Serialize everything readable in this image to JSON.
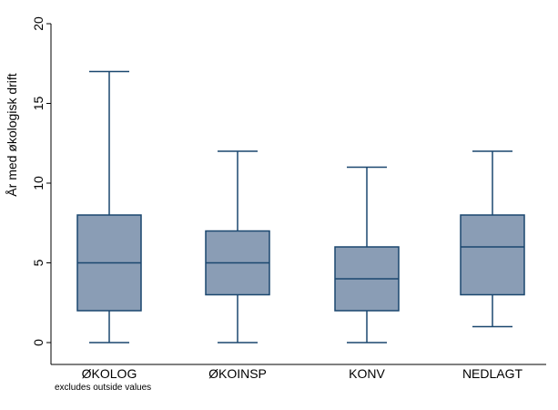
{
  "chart_data": {
    "type": "box",
    "ylabel": "År med økologisk drift",
    "ylim": [
      0,
      20
    ],
    "yticks": [
      0,
      5,
      10,
      15,
      20
    ],
    "categories": [
      "ØKOLOG",
      "ØKOINSP",
      "KONV",
      "NEDLAGT"
    ],
    "boxes": [
      {
        "category": "ØKOLOG",
        "min": 0,
        "q1": 2,
        "median": 5,
        "q3": 8,
        "max": 17
      },
      {
        "category": "ØKOINSP",
        "min": 0,
        "q1": 3,
        "median": 5,
        "q3": 7,
        "max": 12
      },
      {
        "category": "KONV",
        "min": 0,
        "q1": 2,
        "median": 4,
        "q3": 6,
        "max": 11
      },
      {
        "category": "NEDLAGT",
        "min": 1,
        "q1": 3,
        "median": 6,
        "q3": 8,
        "max": 12
      }
    ],
    "note": "excludes outside values",
    "grid": false,
    "colors": {
      "box_fill": "#8a9db5",
      "box_stroke": "#1a476f",
      "axis": "#000000"
    }
  }
}
